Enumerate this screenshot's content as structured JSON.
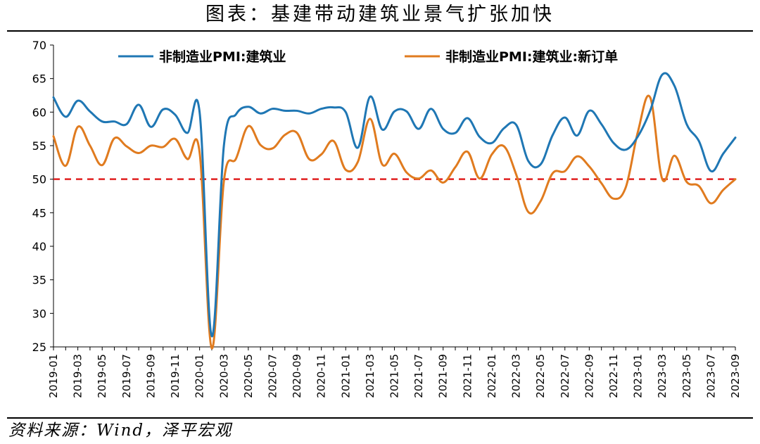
{
  "title": "图表：基建带动建筑业景气扩张加快",
  "source": "资料来源：Wind，泽平宏观",
  "chart_data": {
    "type": "line",
    "ylim": [
      25,
      70
    ],
    "yticks": [
      25,
      30,
      35,
      40,
      45,
      50,
      55,
      60,
      65,
      70
    ],
    "x": [
      "2019-01",
      "2019-02",
      "2019-03",
      "2019-04",
      "2019-05",
      "2019-06",
      "2019-07",
      "2019-08",
      "2019-09",
      "2019-10",
      "2019-11",
      "2019-12",
      "2020-01",
      "2020-02",
      "2020-03",
      "2020-04",
      "2020-05",
      "2020-06",
      "2020-07",
      "2020-08",
      "2020-09",
      "2020-10",
      "2020-11",
      "2020-12",
      "2021-01",
      "2021-02",
      "2021-03",
      "2021-04",
      "2021-05",
      "2021-06",
      "2021-07",
      "2021-08",
      "2021-09",
      "2021-10",
      "2021-11",
      "2021-12",
      "2022-01",
      "2022-02",
      "2022-03",
      "2022-04",
      "2022-05",
      "2022-06",
      "2022-07",
      "2022-08",
      "2022-09",
      "2022-10",
      "2022-11",
      "2022-12",
      "2023-01",
      "2023-02",
      "2023-03",
      "2023-04",
      "2023-05",
      "2023-06",
      "2023-07",
      "2023-08",
      "2023-09"
    ],
    "xtick_labels": [
      "2019-01",
      "2019-03",
      "2019-05",
      "2019-07",
      "2019-09",
      "2019-11",
      "2020-01",
      "2020-03",
      "2020-05",
      "2020-07",
      "2020-09",
      "2020-11",
      "2021-01",
      "2021-03",
      "2021-05",
      "2021-07",
      "2021-09",
      "2021-11",
      "2022-01",
      "2022-03",
      "2022-05",
      "2022-07",
      "2022-09",
      "2022-11",
      "2023-01",
      "2023-03",
      "2023-05",
      "2023-07",
      "2023-09"
    ],
    "series": [
      {
        "name": "非制造业PMI:建筑业",
        "color": "#1f77b4",
        "values": [
          62.2,
          59.3,
          61.7,
          60.1,
          58.6,
          58.6,
          58.2,
          61.1,
          57.8,
          60.4,
          59.6,
          56.9,
          60.0,
          26.6,
          55.1,
          59.7,
          60.8,
          59.8,
          60.5,
          60.2,
          60.2,
          59.8,
          60.5,
          60.7,
          60.0,
          54.7,
          62.3,
          57.4,
          60.1,
          60.1,
          57.5,
          60.5,
          57.5,
          56.9,
          59.1,
          56.3,
          55.4,
          57.6,
          58.1,
          52.7,
          52.2,
          56.6,
          59.2,
          56.5,
          60.2,
          58.2,
          55.4,
          54.4,
          56.4,
          60.2,
          65.6,
          63.9,
          58.2,
          55.7,
          51.2,
          53.8,
          56.2
        ]
      },
      {
        "name": "非制造业PMI:建筑业:新订单",
        "color": "#e07b1f",
        "values": [
          56.4,
          52.0,
          57.8,
          55.0,
          52.1,
          56.1,
          54.9,
          53.9,
          55.0,
          54.8,
          56.0,
          53.0,
          54.0,
          24.8,
          49.8,
          53.1,
          57.9,
          55.1,
          54.6,
          56.6,
          56.9,
          53.0,
          53.7,
          55.7,
          51.4,
          52.6,
          59.0,
          52.2,
          53.8,
          51.0,
          50.1,
          51.3,
          49.5,
          51.8,
          54.1,
          50.1,
          53.7,
          54.9,
          50.7,
          45.1,
          46.7,
          50.9,
          51.2,
          53.4,
          51.9,
          49.4,
          47.1,
          48.8,
          57.1,
          62.2,
          50.0,
          53.5,
          49.6,
          49.0,
          46.4,
          48.4,
          50.0
        ]
      }
    ],
    "reference_line": {
      "value": 50,
      "color": "#e02020",
      "style": "dashed"
    },
    "legend_position": "top",
    "grid": false
  }
}
